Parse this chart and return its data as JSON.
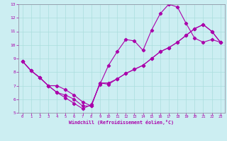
{
  "xlabel": "Windchill (Refroidissement éolien,°C)",
  "background_color": "#cceef2",
  "grid_color": "#aadddd",
  "line_color": "#aa00aa",
  "spine_color": "#888899",
  "xlim": [
    -0.5,
    23.5
  ],
  "ylim": [
    5,
    13
  ],
  "yticks": [
    5,
    6,
    7,
    8,
    9,
    10,
    11,
    12,
    13
  ],
  "xticks": [
    0,
    1,
    2,
    3,
    4,
    5,
    6,
    7,
    8,
    9,
    10,
    11,
    12,
    13,
    14,
    15,
    16,
    17,
    18,
    19,
    20,
    21,
    22,
    23
  ],
  "line1_x": [
    0,
    1,
    2,
    3,
    4,
    5,
    6,
    7,
    8,
    9,
    10,
    11,
    12,
    13,
    14,
    15,
    16,
    17,
    18,
    19,
    20,
    21,
    22,
    23
  ],
  "line1_y": [
    8.8,
    8.1,
    7.6,
    7.0,
    6.5,
    6.1,
    5.7,
    5.3,
    5.6,
    7.1,
    8.5,
    9.5,
    10.4,
    10.3,
    9.6,
    11.1,
    12.3,
    13.0,
    12.8,
    11.6,
    10.5,
    10.2,
    10.4,
    10.2
  ],
  "line2_x": [
    0,
    1,
    2,
    3,
    4,
    5,
    6,
    7,
    8,
    9,
    10,
    11,
    12,
    13,
    14,
    15,
    16,
    17,
    18,
    19,
    20,
    21,
    22,
    23
  ],
  "line2_y": [
    8.8,
    8.1,
    7.6,
    7.0,
    6.5,
    6.3,
    6.0,
    5.5,
    5.5,
    7.2,
    7.1,
    7.5,
    7.9,
    8.2,
    8.5,
    9.0,
    9.5,
    9.8,
    10.2,
    10.7,
    11.2,
    11.5,
    11.0,
    10.2
  ],
  "line3_x": [
    0,
    1,
    2,
    3,
    4,
    5,
    6,
    7,
    8,
    9,
    10,
    11,
    12,
    13,
    14,
    15,
    16,
    17,
    18,
    19,
    20,
    21,
    22,
    23
  ],
  "line3_y": [
    8.8,
    8.1,
    7.6,
    7.0,
    7.0,
    6.7,
    6.3,
    5.8,
    5.5,
    7.2,
    7.2,
    7.5,
    7.9,
    8.2,
    8.5,
    9.0,
    9.5,
    9.8,
    10.2,
    10.7,
    11.2,
    11.5,
    11.0,
    10.2
  ]
}
